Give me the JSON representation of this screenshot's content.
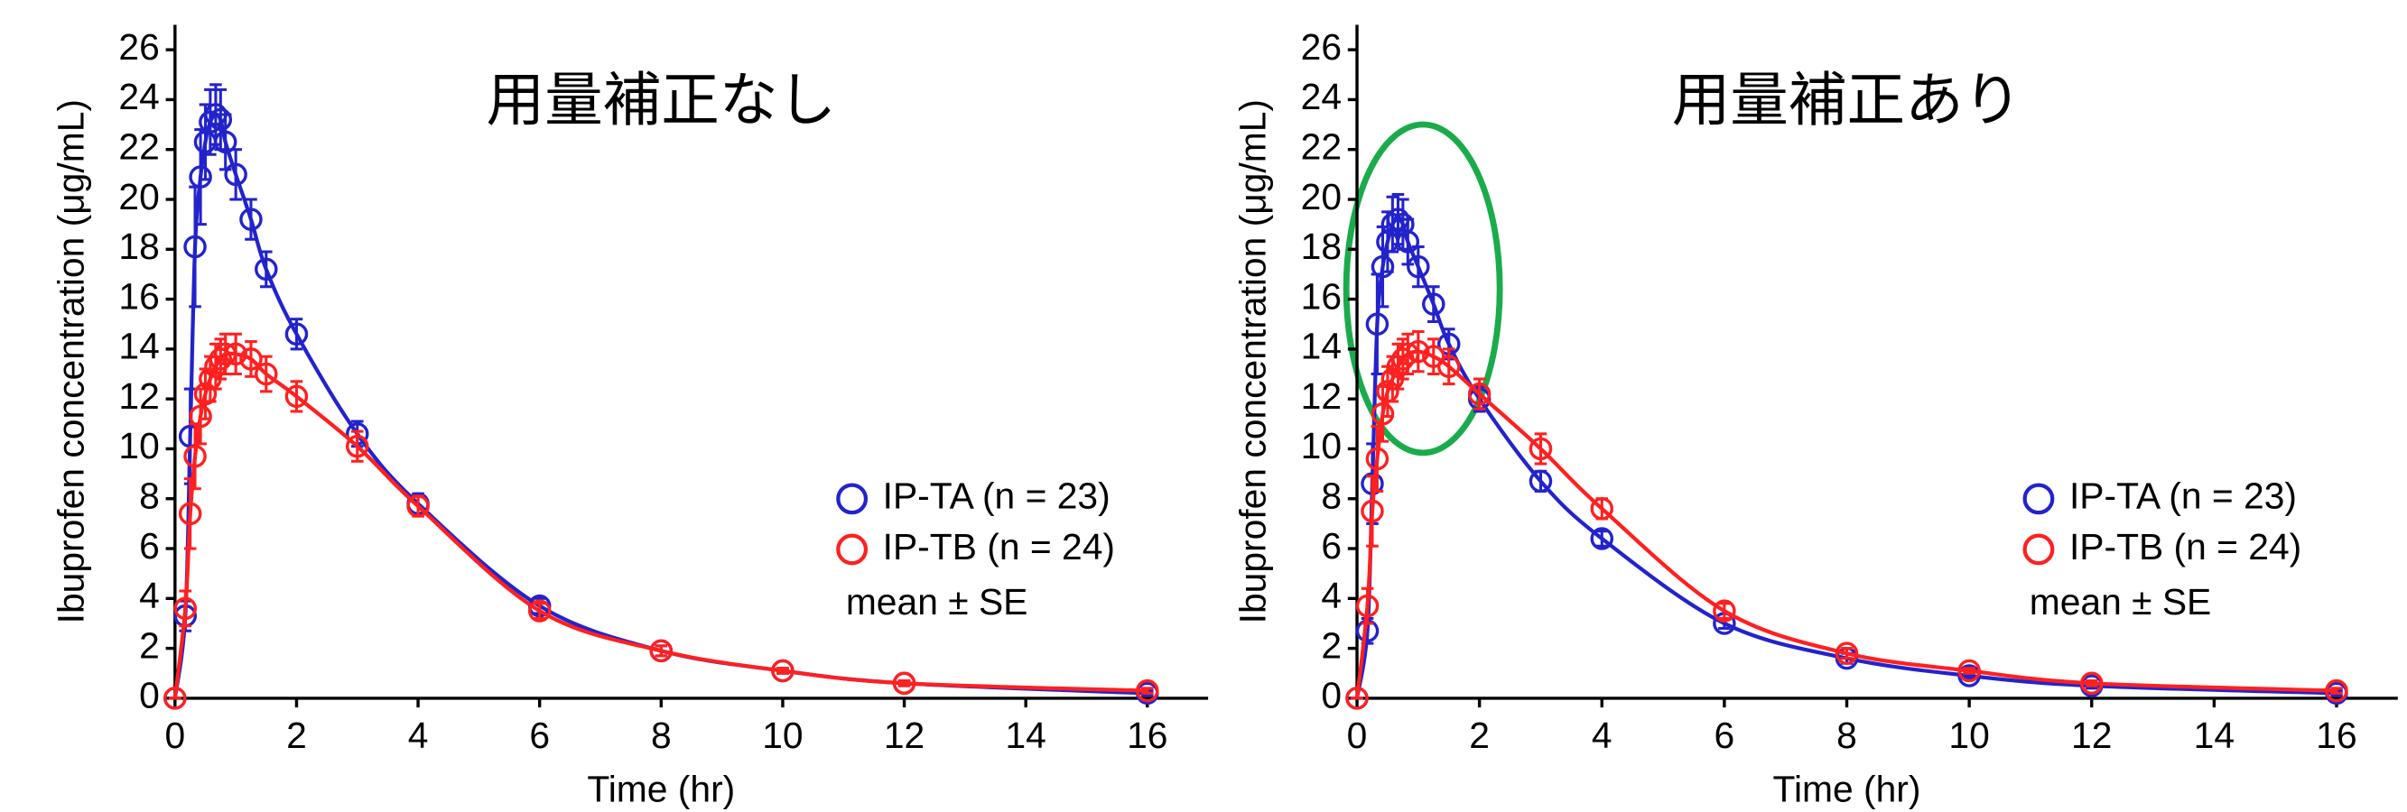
{
  "chart_data": [
    {
      "type": "line",
      "title": "用量補正なし",
      "xlabel": "Time (hr)",
      "ylabel": "Ibuprofen concentration (μg/mL)",
      "x": [
        0,
        0.17,
        0.25,
        0.33,
        0.42,
        0.5,
        0.58,
        0.67,
        0.75,
        0.83,
        1,
        1.25,
        1.5,
        2,
        3,
        4,
        6,
        8,
        10,
        12,
        16
      ],
      "series": [
        {
          "name": "IP-TA (n = 23)",
          "color": "#2323cc",
          "values": [
            0,
            3.3,
            10.5,
            18.1,
            20.9,
            22.3,
            23.1,
            23.4,
            23.2,
            22.3,
            21.0,
            19.2,
            17.2,
            14.6,
            10.6,
            7.8,
            3.7,
            1.9,
            1.1,
            0.6,
            0.2
          ],
          "errors": [
            0,
            0.6,
            1.9,
            2.4,
            1.9,
            1.5,
            1.3,
            1.2,
            1.2,
            1.1,
            1.0,
            0.8,
            0.7,
            0.6,
            0.5,
            0.4,
            0.3,
            0.2,
            0.1,
            0.1,
            0.1
          ]
        },
        {
          "name": "IP-TB (n = 24)",
          "color": "#ff2020",
          "values": [
            0,
            3.6,
            7.4,
            9.7,
            11.3,
            12.2,
            12.8,
            13.3,
            13.6,
            13.8,
            13.8,
            13.6,
            13.0,
            12.1,
            10.1,
            7.7,
            3.5,
            1.9,
            1.1,
            0.6,
            0.3
          ],
          "errors": [
            0,
            0.7,
            1.4,
            1.3,
            1.1,
            1.0,
            0.9,
            0.9,
            0.8,
            0.8,
            0.8,
            0.7,
            0.7,
            0.6,
            0.6,
            0.4,
            0.3,
            0.2,
            0.1,
            0.1,
            0.1
          ]
        }
      ],
      "annotation": "mean ± SE",
      "xlim": [
        0,
        17
      ],
      "ylim": [
        0,
        27
      ],
      "xticks": [
        0,
        2,
        4,
        6,
        8,
        10,
        12,
        14,
        16
      ],
      "yticks": [
        0,
        2,
        4,
        6,
        8,
        10,
        12,
        14,
        16,
        18,
        20,
        22,
        24,
        26
      ]
    },
    {
      "type": "line",
      "title": "用量補正あり",
      "xlabel": "Time (hr)",
      "ylabel": "Ibuprofen concentration (μg/mL)",
      "x": [
        0,
        0.17,
        0.25,
        0.33,
        0.42,
        0.5,
        0.58,
        0.67,
        0.75,
        0.83,
        1,
        1.25,
        1.5,
        2,
        3,
        4,
        6,
        8,
        10,
        12,
        16
      ],
      "series": [
        {
          "name": "IP-TA (n = 23)",
          "color": "#2323cc",
          "values": [
            0,
            2.7,
            8.6,
            15.0,
            17.3,
            18.3,
            19.0,
            19.2,
            19.0,
            18.3,
            17.3,
            15.8,
            14.2,
            12.0,
            8.7,
            6.4,
            3.0,
            1.6,
            0.9,
            0.5,
            0.2
          ],
          "errors": [
            0,
            0.5,
            1.6,
            2.0,
            1.6,
            1.2,
            1.1,
            1.0,
            1.0,
            0.9,
            0.8,
            0.7,
            0.6,
            0.5,
            0.4,
            0.3,
            0.2,
            0.2,
            0.1,
            0.1,
            0.1
          ]
        },
        {
          "name": "IP-TB (n = 24)",
          "color": "#ff2020",
          "values": [
            0,
            3.7,
            7.5,
            9.6,
            11.4,
            12.3,
            12.8,
            13.3,
            13.6,
            13.8,
            13.9,
            13.7,
            13.3,
            12.2,
            10.0,
            7.6,
            3.5,
            1.8,
            1.1,
            0.6,
            0.3
          ],
          "errors": [
            0,
            0.7,
            1.4,
            1.3,
            1.1,
            1.0,
            0.9,
            0.9,
            0.8,
            0.8,
            0.8,
            0.7,
            0.7,
            0.6,
            0.6,
            0.4,
            0.3,
            0.2,
            0.1,
            0.1,
            0.1
          ]
        }
      ],
      "annotation": "mean ± SE",
      "xlim": [
        0,
        17
      ],
      "ylim": [
        0,
        27
      ],
      "xticks": [
        0,
        2,
        4,
        6,
        8,
        10,
        12,
        14,
        16
      ],
      "yticks": [
        0,
        2,
        4,
        6,
        8,
        10,
        12,
        14,
        16,
        18,
        20,
        22,
        24,
        26
      ]
    }
  ]
}
